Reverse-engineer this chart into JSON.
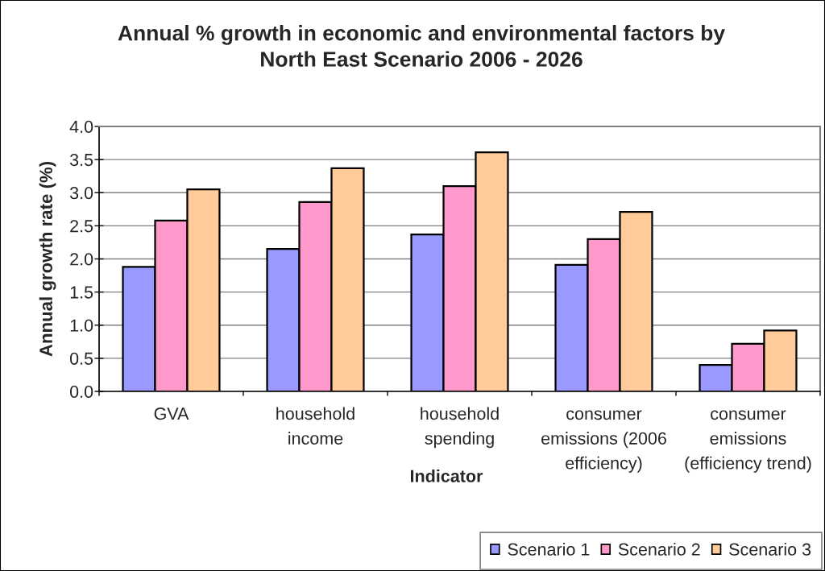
{
  "chart_data": {
    "type": "bar",
    "title": "Annual % growth in economic and environmental factors by\nNorth East Scenario 2006 - 2026",
    "xlabel": "Indicator",
    "ylabel": "Annual growth rate (%)",
    "categories": [
      "GVA",
      "household\nincome",
      "household\nspending",
      "consumer\nemissions (2006\nefficiency)",
      "consumer\nemissions\n(efficiency trend)"
    ],
    "series": [
      {
        "name": "Scenario 1",
        "color": "#9999ff",
        "values": [
          1.88,
          2.15,
          2.37,
          1.91,
          0.4
        ]
      },
      {
        "name": "Scenario 2",
        "color": "#ff99cc",
        "values": [
          2.58,
          2.86,
          3.1,
          2.3,
          0.72
        ]
      },
      {
        "name": "Scenario 3",
        "color": "#ffcc99",
        "values": [
          3.05,
          3.37,
          3.61,
          2.71,
          0.92
        ]
      }
    ],
    "ylim": [
      0,
      4
    ],
    "yticks": [
      {
        "value": 0,
        "label": "0.0"
      },
      0.5,
      {
        "value": 1,
        "label": "1.0"
      },
      1.5,
      {
        "value": 2,
        "label": "2.0"
      },
      2.5,
      {
        "value": 3,
        "label": "3.0"
      },
      3.5,
      {
        "value": 4,
        "label": "4.0"
      }
    ],
    "grid": "y",
    "legend": "bottom right"
  }
}
